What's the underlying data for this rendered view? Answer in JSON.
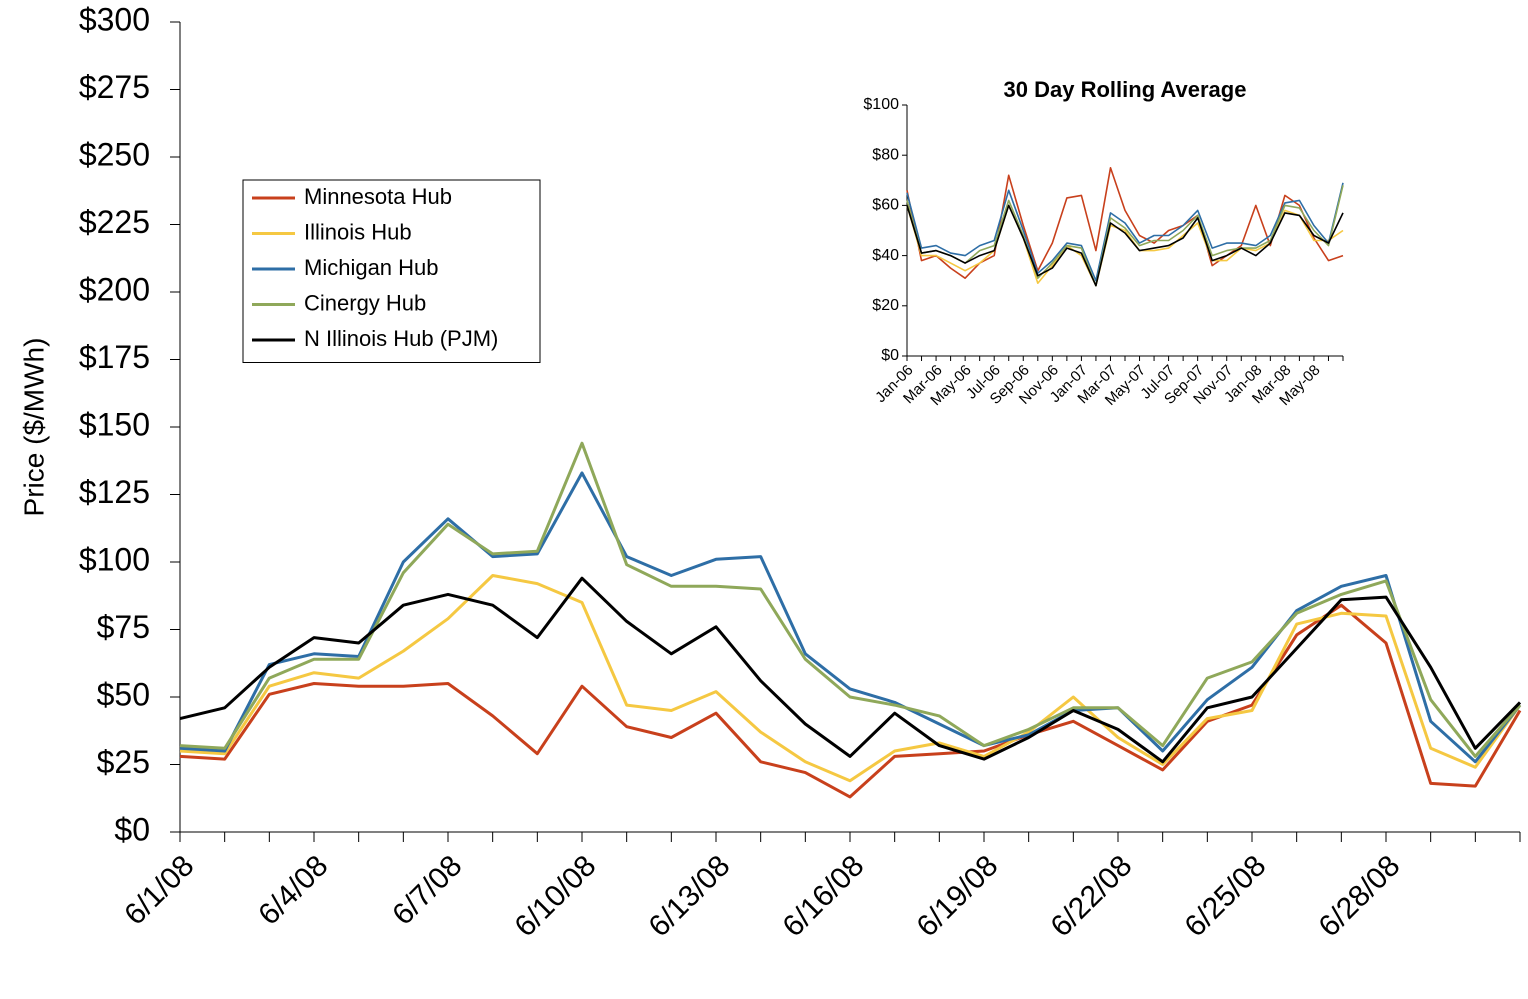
{
  "chart_data": [
    {
      "type": "line",
      "y_label": "Price ($/MWh)",
      "categories": [
        "6/1/08",
        null,
        null,
        "6/4/08",
        null,
        null,
        "6/7/08",
        null,
        null,
        "6/10/08",
        null,
        null,
        "6/13/08",
        null,
        null,
        "6/16/08",
        null,
        null,
        "6/19/08",
        null,
        null,
        "6/22/08",
        null,
        null,
        "6/25/08",
        null,
        null,
        "6/28/08",
        null,
        null,
        null
      ],
      "ylim": [
        0,
        300
      ],
      "yticks": [
        {
          "value": 0,
          "label": "$0"
        },
        {
          "value": 25,
          "label": "$25"
        },
        {
          "value": 50,
          "label": "$50"
        },
        {
          "value": 75,
          "label": "$75"
        },
        {
          "value": 100,
          "label": "$100"
        },
        {
          "value": 125,
          "label": "$125"
        },
        {
          "value": 150,
          "label": "$150"
        },
        {
          "value": 175,
          "label": "$175"
        },
        {
          "value": 200,
          "label": "$200"
        },
        {
          "value": 225,
          "label": "$225"
        },
        {
          "value": 250,
          "label": "$250"
        },
        {
          "value": 275,
          "label": "$275"
        },
        {
          "value": 300,
          "label": "$300"
        }
      ],
      "legend": "upper left",
      "series": [
        {
          "name": "Minnesota Hub",
          "color": "#c8401c",
          "values": [
            28,
            27,
            51,
            55,
            54,
            54,
            55,
            43,
            29,
            54,
            39,
            35,
            44,
            26,
            22,
            13,
            28,
            29,
            30,
            36,
            41,
            32,
            23,
            41,
            47,
            73,
            84,
            70,
            18,
            17,
            45
          ]
        },
        {
          "name": "Illinois Hub",
          "color": "#f5c842",
          "values": [
            30,
            29,
            54,
            59,
            57,
            67,
            79,
            95,
            92,
            85,
            47,
            45,
            52,
            37,
            26,
            19,
            30,
            33,
            28,
            37,
            50,
            35,
            25,
            42,
            45,
            77,
            81,
            80,
            31,
            24,
            47
          ]
        },
        {
          "name": "Michigan Hub",
          "color": "#2e6ea6",
          "values": [
            31,
            30,
            62,
            66,
            65,
            100,
            116,
            102,
            103,
            133,
            102,
            95,
            101,
            102,
            66,
            53,
            48,
            40,
            32,
            36,
            45,
            46,
            30,
            49,
            61,
            82,
            91,
            95,
            41,
            26,
            47
          ]
        },
        {
          "name": "Cinergy Hub",
          "color": "#8fa85a",
          "values": [
            32,
            31,
            57,
            64,
            64,
            96,
            114,
            103,
            104,
            144,
            99,
            91,
            91,
            90,
            64,
            50,
            47,
            43,
            32,
            38,
            46,
            46,
            32,
            57,
            63,
            81,
            88,
            93,
            49,
            28,
            47
          ]
        },
        {
          "name": "N Illinois Hub (PJM)",
          "color": "#000000",
          "values": [
            42,
            46,
            61,
            72,
            70,
            84,
            88,
            84,
            72,
            94,
            78,
            66,
            76,
            56,
            40,
            28,
            44,
            32,
            27,
            35,
            45,
            38,
            26,
            46,
            50,
            68,
            86,
            87,
            61,
            31,
            48
          ]
        }
      ]
    },
    {
      "type": "line",
      "title": "30 Day Rolling Average",
      "categories": [
        "Jan-06",
        null,
        "Mar-06",
        null,
        "May-06",
        null,
        "Jul-06",
        null,
        "Sep-06",
        null,
        "Nov-06",
        null,
        "Jan-07",
        null,
        "Mar-07",
        null,
        "May-07",
        null,
        "Jul-07",
        null,
        "Sep-07",
        null,
        "Nov-07",
        null,
        "Jan-08",
        null,
        "Mar-08",
        null,
        "May-08",
        null,
        null
      ],
      "ylim": [
        0,
        100
      ],
      "yticks": [
        {
          "value": 0,
          "label": "$0"
        },
        {
          "value": 20,
          "label": "$20"
        },
        {
          "value": 40,
          "label": "$40"
        },
        {
          "value": 60,
          "label": "$60"
        },
        {
          "value": 80,
          "label": "$80"
        },
        {
          "value": 100,
          "label": "$100"
        }
      ],
      "series": [
        {
          "color": "#c8401c",
          "values": [
            66,
            38,
            40,
            35,
            31,
            37,
            40,
            72,
            52,
            34,
            45,
            63,
            64,
            42,
            75,
            58,
            48,
            45,
            50,
            52,
            56,
            36,
            40,
            44,
            60,
            44,
            64,
            60,
            47,
            38,
            40
          ]
        },
        {
          "color": "#f5c842",
          "values": [
            60,
            40,
            40,
            37,
            34,
            37,
            42,
            60,
            47,
            29,
            36,
            44,
            40,
            28,
            52,
            50,
            42,
            42,
            43,
            48,
            53,
            38,
            38,
            43,
            42,
            45,
            58,
            56,
            46,
            46,
            50
          ]
        },
        {
          "color": "#2e6ea6",
          "values": [
            65,
            43,
            44,
            41,
            40,
            44,
            46,
            66,
            50,
            33,
            38,
            45,
            44,
            30,
            57,
            53,
            45,
            48,
            48,
            52,
            58,
            43,
            45,
            45,
            44,
            48,
            61,
            62,
            52,
            45,
            69
          ]
        },
        {
          "color": "#8fa85a",
          "values": [
            62,
            41,
            42,
            40,
            37,
            42,
            44,
            62,
            48,
            31,
            37,
            44,
            43,
            28,
            55,
            51,
            44,
            46,
            46,
            50,
            56,
            40,
            42,
            43,
            43,
            46,
            60,
            59,
            50,
            44,
            68
          ]
        },
        {
          "color": "#000000",
          "values": [
            60,
            41,
            42,
            40,
            37,
            40,
            42,
            60,
            47,
            32,
            35,
            43,
            41,
            28,
            53,
            49,
            42,
            43,
            44,
            47,
            55,
            38,
            40,
            43,
            40,
            45,
            57,
            56,
            48,
            45,
            57
          ]
        }
      ]
    }
  ]
}
